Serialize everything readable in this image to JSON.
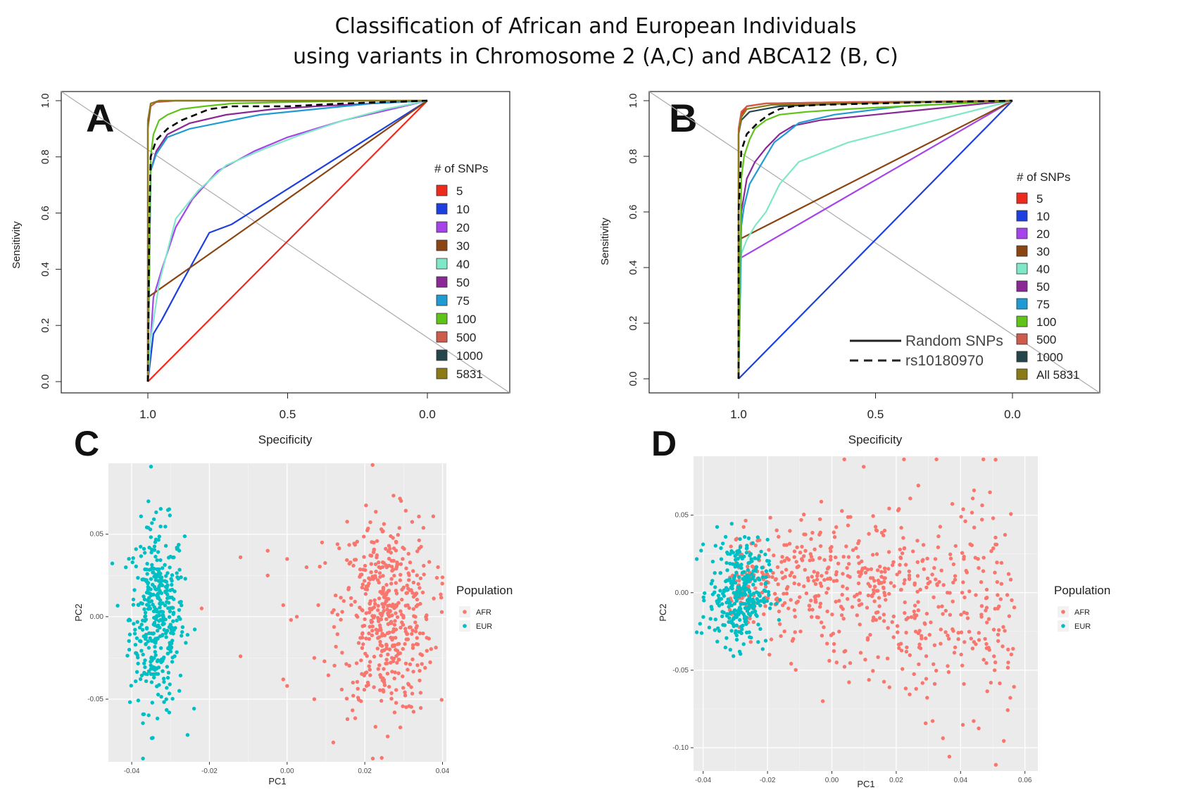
{
  "title_line1": "Classification of African and European Individuals",
  "title_line2": "using variants in Chromosome 2 (A,C) and ABCA12 (B, C)",
  "colors": {
    "s5": "#ee2a1c",
    "s10": "#1d3fe0",
    "s20": "#a544e8",
    "s30": "#8b4513",
    "s40": "#7fe8c8",
    "s50": "#8a2896",
    "s75": "#1e9bd3",
    "s100": "#5fc318",
    "s500": "#cd5c4c",
    "s1000": "#24464a",
    "s5831": "#8b7a16",
    "afr": "#f8766d",
    "eur": "#00bfc4",
    "ggbg": "#ebebeb"
  },
  "chart_data": [
    {
      "panel": "A",
      "type": "line",
      "xlabel": "Specificity",
      "ylabel": "Sensitivity",
      "xlim": [
        1.0,
        0.0
      ],
      "ylim": [
        0.0,
        1.0
      ],
      "xticks": [
        "1.0",
        "0.5",
        "0.0"
      ],
      "yticks": [
        "0.0",
        "0.2",
        "0.4",
        "0.6",
        "0.8",
        "1.0"
      ],
      "legend_title": "# of SNPs",
      "legend_position": "right",
      "series": [
        {
          "name": "5",
          "color": "s5",
          "dash": false,
          "x": [
            1.0,
            0.0
          ],
          "y": [
            0.0,
            1.0
          ]
        },
        {
          "name": "10",
          "color": "s10",
          "dash": false,
          "x": [
            1.0,
            0.98,
            0.95,
            0.88,
            0.78,
            0.7,
            0.0
          ],
          "y": [
            0.0,
            0.17,
            0.22,
            0.35,
            0.53,
            0.56,
            1.0
          ]
        },
        {
          "name": "20",
          "color": "s20",
          "dash": false,
          "x": [
            1.0,
            0.98,
            0.95,
            0.9,
            0.84,
            0.75,
            0.62,
            0.5,
            0.3,
            0.0
          ],
          "y": [
            0.0,
            0.3,
            0.4,
            0.55,
            0.65,
            0.75,
            0.82,
            0.87,
            0.93,
            1.0
          ]
        },
        {
          "name": "30",
          "color": "s30",
          "dash": false,
          "x": [
            1.0,
            1.0,
            0.0
          ],
          "y": [
            0.0,
            0.3,
            1.0
          ]
        },
        {
          "name": "40",
          "color": "s40",
          "dash": false,
          "x": [
            1.0,
            0.99,
            0.96,
            0.9,
            0.82,
            0.72,
            0.58,
            0.45,
            0.3,
            0.15,
            0.0
          ],
          "y": [
            0.0,
            0.15,
            0.35,
            0.58,
            0.68,
            0.77,
            0.83,
            0.88,
            0.93,
            0.97,
            1.0
          ]
        },
        {
          "name": "50",
          "color": "s50",
          "dash": false,
          "x": [
            1.0,
            0.99,
            0.97,
            0.93,
            0.85,
            0.72,
            0.55,
            0.4,
            0.2,
            0.0
          ],
          "y": [
            0.0,
            0.75,
            0.82,
            0.88,
            0.92,
            0.95,
            0.97,
            0.98,
            0.99,
            1.0
          ]
        },
        {
          "name": "75",
          "color": "s75",
          "dash": false,
          "x": [
            1.0,
            0.99,
            0.97,
            0.93,
            0.85,
            0.75,
            0.6,
            0.4,
            0.2,
            0.0
          ],
          "y": [
            0.0,
            0.75,
            0.81,
            0.87,
            0.9,
            0.92,
            0.95,
            0.97,
            0.99,
            1.0
          ]
        },
        {
          "name": "100",
          "color": "s100",
          "dash": false,
          "x": [
            1.0,
            0.99,
            0.98,
            0.96,
            0.93,
            0.88,
            0.8,
            0.7,
            0.5,
            0.25,
            0.0
          ],
          "y": [
            0.0,
            0.8,
            0.88,
            0.93,
            0.95,
            0.97,
            0.98,
            0.99,
            0.995,
            1.0,
            1.0
          ]
        },
        {
          "name": "500",
          "color": "s500",
          "dash": false,
          "x": [
            1.0,
            1.0,
            0.99,
            0.97,
            0.9,
            0.7,
            0.4,
            0.0
          ],
          "y": [
            0.0,
            0.9,
            0.98,
            0.995,
            1.0,
            1.0,
            1.0,
            1.0
          ]
        },
        {
          "name": "1000",
          "color": "s1000",
          "dash": false,
          "x": [
            1.0,
            1.0,
            0.99,
            0.96,
            0.85,
            0.5,
            0.0
          ],
          "y": [
            0.0,
            0.92,
            0.99,
            1.0,
            1.0,
            1.0,
            1.0
          ]
        },
        {
          "name": "5831",
          "color": "s5831",
          "dash": false,
          "x": [
            1.0,
            1.0,
            0.99,
            0.96,
            0.85,
            0.5,
            0.0
          ],
          "y": [
            0.0,
            0.93,
            0.99,
            1.0,
            1.0,
            1.0,
            1.0
          ]
        },
        {
          "name": "",
          "color": "black",
          "dash": true,
          "x": [
            1.0,
            0.995,
            0.99,
            0.97,
            0.93,
            0.88,
            0.83,
            0.78,
            0.7,
            0.5,
            0.3,
            0.0
          ],
          "y": [
            0.0,
            0.55,
            0.8,
            0.86,
            0.9,
            0.93,
            0.95,
            0.97,
            0.98,
            0.98,
            0.99,
            1.0
          ]
        }
      ]
    },
    {
      "panel": "B",
      "type": "line",
      "xlabel": "Specificity",
      "ylabel": "Sensitivity",
      "xlim": [
        1.0,
        0.0
      ],
      "ylim": [
        0.0,
        1.0
      ],
      "xticks": [
        "1.0",
        "0.5",
        "0.0"
      ],
      "yticks": [
        "0.0",
        "0.2",
        "0.4",
        "0.6",
        "0.8",
        "1.0"
      ],
      "legend_title": "# of SNPs",
      "legend_position": "right",
      "line_key": [
        "Random SNPs",
        "rs10180970"
      ],
      "series": [
        {
          "name": "5",
          "color": "s5",
          "dash": false,
          "x": [
            1.0,
            1.0,
            0.99,
            0.97,
            0.9,
            0.6,
            0.0
          ],
          "y": [
            0.0,
            0.88,
            0.95,
            0.98,
            0.99,
            0.995,
            1.0
          ]
        },
        {
          "name": "10",
          "color": "s10",
          "dash": false,
          "x": [
            1.0,
            0.0
          ],
          "y": [
            0.0,
            1.0
          ]
        },
        {
          "name": "20",
          "color": "s20",
          "dash": false,
          "x": [
            1.0,
            1.0,
            0.0
          ],
          "y": [
            0.0,
            0.43,
            1.0
          ]
        },
        {
          "name": "30",
          "color": "s30",
          "dash": false,
          "x": [
            1.0,
            1.0,
            0.0
          ],
          "y": [
            0.0,
            0.5,
            1.0
          ]
        },
        {
          "name": "40",
          "color": "s40",
          "dash": false,
          "x": [
            1.0,
            0.99,
            0.97,
            0.94,
            0.9,
            0.85,
            0.78,
            0.6,
            0.4,
            0.2,
            0.0
          ],
          "y": [
            0.0,
            0.45,
            0.5,
            0.55,
            0.6,
            0.7,
            0.78,
            0.85,
            0.9,
            0.95,
            1.0
          ]
        },
        {
          "name": "50",
          "color": "s50",
          "dash": false,
          "x": [
            1.0,
            0.99,
            0.97,
            0.94,
            0.9,
            0.85,
            0.8,
            0.7,
            0.5,
            0.3,
            0.0
          ],
          "y": [
            0.0,
            0.6,
            0.72,
            0.78,
            0.83,
            0.88,
            0.91,
            0.93,
            0.95,
            0.97,
            1.0
          ]
        },
        {
          "name": "75",
          "color": "s75",
          "dash": false,
          "x": [
            1.0,
            0.99,
            0.98,
            0.96,
            0.93,
            0.9,
            0.87,
            0.83,
            0.78,
            0.65,
            0.4,
            0.0
          ],
          "y": [
            0.0,
            0.55,
            0.62,
            0.7,
            0.75,
            0.8,
            0.85,
            0.88,
            0.92,
            0.95,
            0.98,
            1.0
          ]
        },
        {
          "name": "100",
          "color": "s100",
          "dash": false,
          "x": [
            1.0,
            0.99,
            0.98,
            0.96,
            0.94,
            0.9,
            0.85,
            0.75,
            0.6,
            0.4,
            0.0
          ],
          "y": [
            0.0,
            0.72,
            0.8,
            0.86,
            0.9,
            0.93,
            0.95,
            0.96,
            0.97,
            0.98,
            1.0
          ]
        },
        {
          "name": "500",
          "color": "s500",
          "dash": false,
          "x": [
            1.0,
            1.0,
            0.99,
            0.97,
            0.9,
            0.6,
            0.0
          ],
          "y": [
            0.0,
            0.9,
            0.96,
            0.98,
            0.99,
            0.995,
            1.0
          ]
        },
        {
          "name": "1000",
          "color": "s1000",
          "dash": false,
          "x": [
            1.0,
            1.0,
            0.99,
            0.96,
            0.85,
            0.6,
            0.0
          ],
          "y": [
            0.0,
            0.88,
            0.93,
            0.96,
            0.98,
            0.99,
            1.0
          ]
        },
        {
          "name": "All 5831",
          "color": "s5831",
          "dash": false,
          "x": [
            1.0,
            1.0,
            0.99,
            0.97,
            0.88,
            0.6,
            0.0
          ],
          "y": [
            0.0,
            0.88,
            0.94,
            0.97,
            0.985,
            0.99,
            1.0
          ]
        },
        {
          "name": "",
          "color": "black",
          "dash": true,
          "x": [
            1.0,
            1.0,
            0.99,
            0.97,
            0.93,
            0.89,
            0.85,
            0.8,
            0.7,
            0.5,
            0.3,
            0.0
          ],
          "y": [
            0.0,
            0.6,
            0.82,
            0.88,
            0.92,
            0.95,
            0.97,
            0.98,
            0.985,
            0.99,
            0.995,
            1.0
          ]
        }
      ]
    },
    {
      "panel": "C",
      "type": "scatter",
      "xlabel": "PC1",
      "ylabel": "PC2",
      "xlim": [
        -0.046,
        0.041
      ],
      "ylim": [
        -0.088,
        0.093
      ],
      "xticks": [
        -0.04,
        -0.02,
        0.0,
        0.02,
        0.04
      ],
      "xtick_labels": [
        "-0.04",
        "-0.02",
        "0.00",
        "0.02",
        "0.04"
      ],
      "yticks": [
        -0.05,
        0.0,
        0.05
      ],
      "ytick_labels": [
        "-0.05",
        "0.00",
        "0.05"
      ],
      "legend_title": "Population",
      "legend_position": "right",
      "legend_labels": [
        "AFR",
        "EUR"
      ],
      "clusters": [
        {
          "name": "EUR",
          "color": "eur",
          "n": 400,
          "cx": -0.0335,
          "cy": 0.0,
          "sx": 0.0035,
          "sy": 0.028
        },
        {
          "name": "AFR",
          "color": "afr",
          "n": 480,
          "cx": 0.0255,
          "cy": 0.0,
          "sx": 0.006,
          "sy": 0.03
        }
      ],
      "extra_points": [
        {
          "pop": "AFR",
          "x": -0.012,
          "y": 0.036
        },
        {
          "pop": "AFR",
          "x": -0.005,
          "y": 0.04
        },
        {
          "pop": "AFR",
          "x": -0.005,
          "y": 0.025
        },
        {
          "pop": "AFR",
          "x": 0.0,
          "y": 0.035
        },
        {
          "pop": "AFR",
          "x": -0.001,
          "y": 0.007
        },
        {
          "pop": "AFR",
          "x": -0.012,
          "y": -0.024
        },
        {
          "pop": "AFR",
          "x": -0.001,
          "y": -0.038
        },
        {
          "pop": "AFR",
          "x": 0.0,
          "y": -0.042
        },
        {
          "pop": "AFR",
          "x": -0.022,
          "y": 0.005
        },
        {
          "pop": "AFR",
          "x": 0.001,
          "y": -0.002
        },
        {
          "pop": "AFR",
          "x": 0.005,
          "y": 0.03
        },
        {
          "pop": "AFR",
          "x": 0.007,
          "y": -0.025
        },
        {
          "pop": "AFR",
          "x": 0.0025,
          "y": 0.0
        },
        {
          "pop": "AFR",
          "x": 0.009,
          "y": 0.045
        },
        {
          "pop": "AFR",
          "x": 0.007,
          "y": -0.05
        },
        {
          "pop": "AFR",
          "x": 0.022,
          "y": 0.092
        }
      ]
    },
    {
      "panel": "D",
      "type": "scatter",
      "xlabel": "PC1",
      "ylabel": "PC2",
      "xlim": [
        -0.043,
        0.064
      ],
      "ylim": [
        -0.115,
        0.088
      ],
      "xticks": [
        -0.04,
        -0.02,
        0.0,
        0.02,
        0.04,
        0.06
      ],
      "xtick_labels": [
        "-0.04",
        "-0.02",
        "0.00",
        "0.02",
        "0.04",
        "0.06"
      ],
      "yticks": [
        -0.1,
        -0.05,
        0.0,
        0.05
      ],
      "ytick_labels": [
        "-0.10",
        "-0.05",
        "0.00",
        "0.05"
      ],
      "legend_title": "Population",
      "legend_position": "right",
      "legend_labels": [
        "AFR",
        "EUR"
      ],
      "clusters": [
        {
          "name": "AFR",
          "color": "afr",
          "n": 640,
          "x_range": [
            -0.032,
            0.057
          ],
          "cy": 0.0,
          "sy": 0.03
        },
        {
          "name": "EUR",
          "color": "eur",
          "n": 320,
          "cx": -0.029,
          "cy": 0.0,
          "sx": 0.0045,
          "sy": 0.017
        }
      ]
    }
  ]
}
